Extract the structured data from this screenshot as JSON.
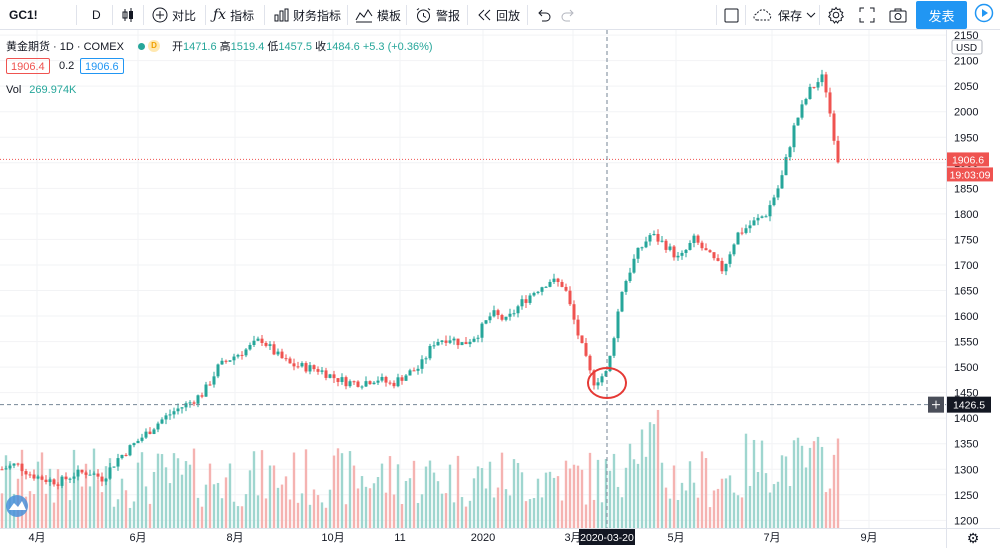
{
  "toolbar": {
    "symbol": "GC1!",
    "interval": "D",
    "compare": "对比",
    "indicators": "指标",
    "financials": "财务指标",
    "templates": "模板",
    "alerts": "警报",
    "replay": "回放",
    "save": "保存",
    "publish": "发表"
  },
  "legend": {
    "title": "黄金期货 · 1D · COMEX",
    "delayed_badge": "D",
    "ohlc_label_open": "开",
    "open": "1471.6",
    "ohlc_label_high": "高",
    "high": "1519.4",
    "ohlc_label_low": "低",
    "low": "1457.5",
    "ohlc_label_close": "收",
    "close": "1484.6",
    "change": "+5.3 (+0.36%)",
    "bid": "1906.4",
    "spread": "0.2",
    "ask": "1906.6",
    "vol_label": "Vol",
    "vol_value": "269.974K"
  },
  "colors": {
    "up": "#26a69a",
    "down": "#ef5350",
    "vol_up": "#9fd6cf",
    "vol_down": "#f5b3b1",
    "accent": "#2196f3",
    "annotation": "#e53935"
  },
  "chart_data": {
    "type": "candlestick",
    "currency": "USD",
    "x_tick_labels": [
      "4月",
      "6月",
      "8月",
      "10月",
      "11",
      "2020",
      "3月",
      "5月",
      "7月",
      "9月"
    ],
    "y_ticks": [
      1200,
      1250,
      1300,
      1350,
      1400,
      1450,
      1500,
      1550,
      1600,
      1650,
      1700,
      1750,
      1800,
      1850,
      1900,
      1950,
      2000,
      2050,
      2100,
      2150
    ],
    "y_range": [
      1185,
      2160
    ],
    "last_price": "1906.6",
    "countdown": "19:03:09",
    "crosshair_price": "1426.5",
    "crosshair_date": "2020-03-20",
    "annotation": "circle around March 2020 low",
    "close_path": [
      1300,
      1310,
      1290,
      1280,
      1275,
      1290,
      1295,
      1282,
      1320,
      1345,
      1370,
      1395,
      1415,
      1430,
      1450,
      1500,
      1520,
      1535,
      1555,
      1525,
      1505,
      1500,
      1495,
      1480,
      1470,
      1470,
      1478,
      1466,
      1485,
      1500,
      1550,
      1558,
      1545,
      1565,
      1605,
      1590,
      1625,
      1650,
      1670,
      1660,
      1560,
      1470,
      1490,
      1650,
      1720,
      1760,
      1740,
      1710,
      1750,
      1720,
      1690,
      1760,
      1780,
      1800,
      1860,
      1975,
      2040,
      2070,
      1906.6
    ]
  }
}
